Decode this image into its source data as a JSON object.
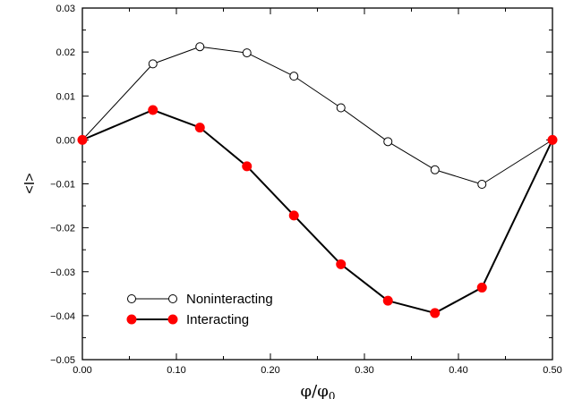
{
  "chart_data": {
    "type": "line",
    "title": "",
    "xlabel": "φ/φ",
    "xlabel_sub": "0",
    "ylabel": "<I>",
    "xlim": [
      0.0,
      0.5
    ],
    "ylim": [
      -0.05,
      0.03
    ],
    "xticks": [
      0.0,
      0.1,
      0.2,
      0.3,
      0.4,
      0.5
    ],
    "xtick_labels": [
      "0.00",
      "0.10",
      "0.20",
      "0.30",
      "0.40",
      "0.50"
    ],
    "yticks": [
      -0.05,
      -0.04,
      -0.03,
      -0.02,
      -0.01,
      0.0,
      0.01,
      0.02,
      0.03
    ],
    "ytick_labels": [
      "−0.05",
      "−0.04",
      "−0.03",
      "−0.02",
      "−0.01",
      "0.00",
      "0.01",
      "0.02",
      "0.03"
    ],
    "grid": false,
    "legend_position": "bottom-left",
    "series": [
      {
        "name": "Noninteracting",
        "color": "#000000",
        "marker": "open-circle",
        "x": [
          0.0,
          0.075,
          0.125,
          0.175,
          0.225,
          0.275,
          0.325,
          0.375,
          0.425,
          0.5
        ],
        "y": [
          0.0,
          0.0173,
          0.0212,
          0.0198,
          0.0145,
          0.0073,
          -0.0004,
          -0.0068,
          -0.0101,
          0.0
        ]
      },
      {
        "name": "Interacting",
        "color": "#ff0000",
        "marker": "filled-circle",
        "x": [
          0.0,
          0.075,
          0.125,
          0.175,
          0.225,
          0.275,
          0.325,
          0.375,
          0.425,
          0.5
        ],
        "y": [
          0.0,
          0.0068,
          0.0028,
          -0.006,
          -0.0172,
          -0.0283,
          -0.0366,
          -0.0394,
          -0.0336,
          0.0
        ]
      }
    ]
  }
}
